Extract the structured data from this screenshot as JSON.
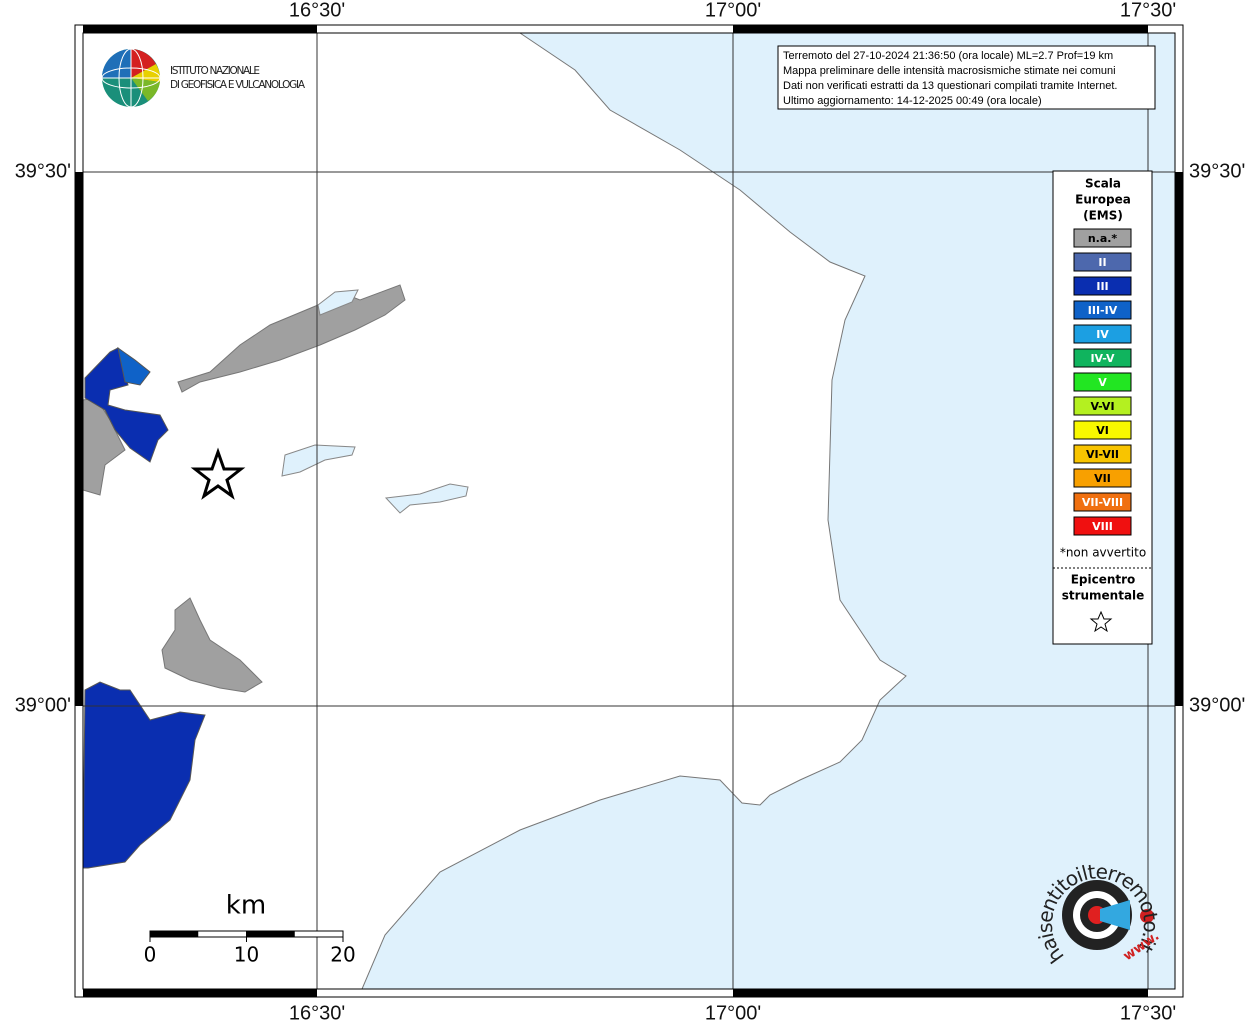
{
  "header": {
    "institute": [
      "ISTITUTO NAZIONALE",
      "DI GEOFISICA E VULCANOLOGIA"
    ]
  },
  "info": [
    "Terremoto del 27-10-2024 21:36:50 (ora locale) ML=2.7 Prof=19 km",
    "Mappa preliminare delle intensità macrosismiche stimate nei comuni",
    "Dati non verificati estratti da 13 questionari compilati tramite Internet.",
    "Ultimo aggiornamento: 14-12-2025 00:49 (ora locale)"
  ],
  "graticule": {
    "lon_labels": [
      "16°30'",
      "17°00'",
      "17°30'"
    ],
    "lat_labels": [
      "39°30'",
      "39°00'"
    ]
  },
  "legend": {
    "title": [
      "Scala",
      "Europea",
      "(EMS)"
    ],
    "classes": [
      {
        "label": "n.a.*",
        "color": "#a0a0a0"
      },
      {
        "label": "II",
        "color": "#4d68ad"
      },
      {
        "label": "III",
        "color": "#0a2eb0"
      },
      {
        "label": "III-IV",
        "color": "#0f62c8"
      },
      {
        "label": "IV",
        "color": "#1c9fe2"
      },
      {
        "label": "IV-V",
        "color": "#10b45e"
      },
      {
        "label": "V",
        "color": "#22e622"
      },
      {
        "label": "V-VI",
        "color": "#b4f020"
      },
      {
        "label": "VI",
        "color": "#f8f800"
      },
      {
        "label": "VI-VII",
        "color": "#f8c400"
      },
      {
        "label": "VII",
        "color": "#f8a000"
      },
      {
        "label": "VII-VIII",
        "color": "#f07010"
      },
      {
        "label": "VIII",
        "color": "#f01010"
      }
    ],
    "note": "*non avvertito",
    "epicenter": [
      "Epicentro",
      "strumentale"
    ]
  },
  "scale_bar": {
    "unit": "km",
    "ticks": [
      0,
      10,
      20
    ]
  },
  "badge": {
    "text": "haisentitoilterremoto.it",
    "prefix": "www."
  }
}
